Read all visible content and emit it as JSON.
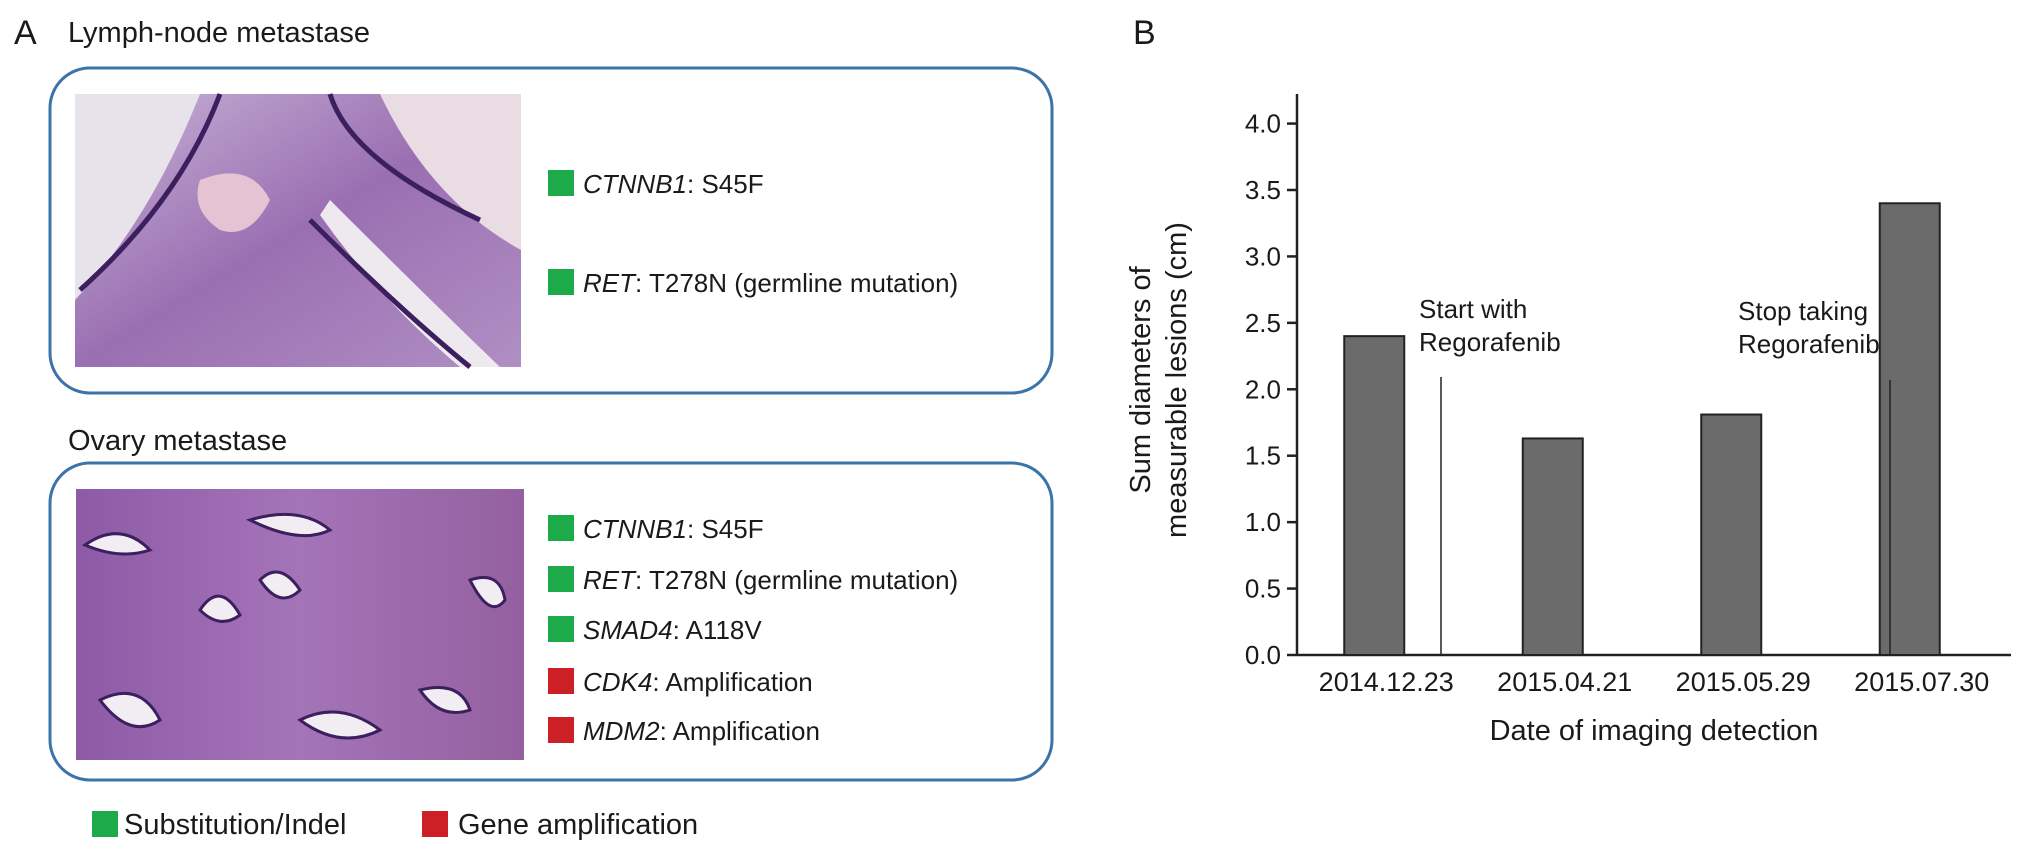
{
  "panel_a": {
    "label": "A",
    "groups": [
      {
        "title": "Lymph-node metastase",
        "items": [
          {
            "gene": "CTNNB1",
            "detail": ": S45F",
            "color": "#1daa4a"
          },
          {
            "gene": "RET",
            "detail": ": T278N (germline mutation)",
            "color": "#1daa4a"
          }
        ]
      },
      {
        "title": "Ovary metastase",
        "items": [
          {
            "gene": "CTNNB1",
            "detail": ": S45F",
            "color": "#1daa4a"
          },
          {
            "gene": "RET",
            "detail": ": T278N (germline mutation)",
            "color": "#1daa4a"
          },
          {
            "gene": "SMAD4",
            "detail": ": A118V",
            "color": "#1daa4a"
          },
          {
            "gene": "CDK4",
            "detail": ": Amplification",
            "color": "#cc1f26"
          },
          {
            "gene": "MDM2",
            "detail": ": Amplification",
            "color": "#cc1f26"
          }
        ]
      }
    ],
    "legend": [
      {
        "label": "Substitution/Indel",
        "color": "#1daa4a"
      },
      {
        "label": "Gene amplification",
        "color": "#cc1f26"
      }
    ]
  },
  "chart_data": {
    "type": "bar",
    "panel_label": "B",
    "categories": [
      "2014.12.23",
      "2015.04.21",
      "2015.05.29",
      "2015.07.30"
    ],
    "values": [
      2.4,
      1.63,
      1.81,
      3.4
    ],
    "color": "#6b6b6b",
    "ylim": [
      0,
      4.2
    ],
    "yticks": [
      {
        "value": 0,
        "label": "0.0"
      },
      0.5,
      {
        "value": 1,
        "label": "1.0"
      },
      1.5,
      {
        "value": 2,
        "label": "2.0"
      },
      2.5,
      {
        "value": 3,
        "label": "3.0"
      },
      3.5,
      {
        "value": 4,
        "label": "4.0"
      }
    ],
    "ylabel": [
      "Sum diameters of",
      "measurable lesions (cm)"
    ],
    "xlabel": "Date of imaging detection",
    "annotations": [
      {
        "text": [
          "Start with",
          "Regorafenib"
        ]
      },
      {
        "text": [
          "Stop taking",
          "Regorafenib"
        ]
      }
    ],
    "grid": false
  }
}
